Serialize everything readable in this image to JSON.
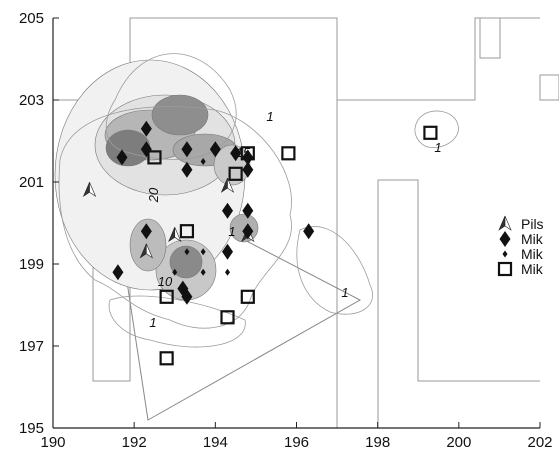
{
  "chart_data": {
    "type": "scatter",
    "title": "",
    "xlabel": "",
    "ylabel": "",
    "xlim": [
      190,
      202
    ],
    "ylim": [
      195,
      205
    ],
    "x_ticks": [
      190,
      192,
      194,
      196,
      198,
      200,
      202
    ],
    "y_ticks": [
      195,
      197,
      199,
      201,
      203,
      205
    ],
    "grid": false,
    "background": "contour map (density shading with contour lines)",
    "contour_labels": [
      "1",
      "1",
      "1",
      "1",
      "10",
      "20",
      "15",
      "1"
    ],
    "legend": {
      "placement": "right",
      "entries": [
        "Pils",
        "Mik",
        "Mik",
        "Mik"
      ]
    },
    "series": [
      {
        "name": "Pils",
        "marker": "arrowhead",
        "points": [
          [
            190.9,
            200.8
          ],
          [
            192.3,
            199.3
          ],
          [
            193.0,
            199.7
          ],
          [
            194.3,
            200.9
          ],
          [
            194.8,
            199.7
          ]
        ]
      },
      {
        "name": "Mik",
        "marker": "large-diamond",
        "points": [
          [
            192.3,
            202.3
          ],
          [
            192.3,
            201.8
          ],
          [
            191.7,
            201.6
          ],
          [
            193.3,
            201.8
          ],
          [
            193.3,
            201.3
          ],
          [
            194.0,
            201.8
          ],
          [
            194.5,
            201.7
          ],
          [
            194.8,
            201.6
          ],
          [
            194.8,
            201.3
          ],
          [
            194.3,
            200.3
          ],
          [
            194.8,
            200.3
          ],
          [
            192.3,
            199.8
          ],
          [
            194.3,
            199.3
          ],
          [
            194.8,
            199.8
          ],
          [
            196.3,
            199.8
          ],
          [
            191.6,
            198.8
          ],
          [
            193.2,
            198.4
          ],
          [
            193.3,
            198.2
          ]
        ]
      },
      {
        "name": "Mik",
        "marker": "small-diamond",
        "points": [
          [
            193.3,
            201.7
          ],
          [
            193.7,
            201.5
          ],
          [
            193.3,
            199.3
          ],
          [
            193.7,
            199.3
          ],
          [
            193.0,
            198.8
          ],
          [
            193.7,
            198.8
          ],
          [
            194.3,
            198.8
          ]
        ]
      },
      {
        "name": "Mik",
        "marker": "open-square",
        "points": [
          [
            192.5,
            201.6
          ],
          [
            194.8,
            201.7
          ],
          [
            195.8,
            201.7
          ],
          [
            194.5,
            201.2
          ],
          [
            199.3,
            202.2
          ],
          [
            193.3,
            199.8
          ],
          [
            194.8,
            198.2
          ],
          [
            192.8,
            198.2
          ],
          [
            194.3,
            197.7
          ],
          [
            192.8,
            196.7
          ]
        ]
      }
    ]
  }
}
